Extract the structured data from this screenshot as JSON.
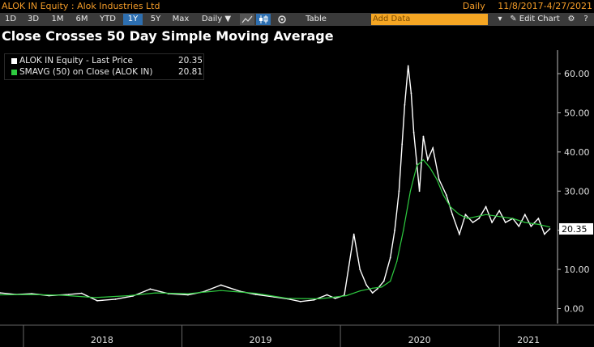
{
  "header": {
    "security": "ALOK IN Equity : Alok Industries Ltd",
    "frequency": "Daily",
    "date_range": "11/8/2017-4/27/2021"
  },
  "toolbar": {
    "periods": [
      "1D",
      "3D",
      "1M",
      "6M",
      "YTD",
      "1Y",
      "5Y",
      "Max"
    ],
    "selected_period": "1Y",
    "frequency_label": "Daily ▼",
    "line_icon": "line-chart-icon",
    "candle_icon": "candlestick-icon",
    "settings_icon": "gear-icon",
    "table_label": "Table",
    "add_data_placeholder": "Add Data",
    "edit_chart_label": "Edit Chart",
    "colors": {
      "accent": "#f29b28",
      "selected": "#2d6fb1",
      "add_data": "#f5a623"
    }
  },
  "chart_data": {
    "type": "line",
    "title": "Close Crosses 50 Day Simple Moving Average",
    "series": [
      {
        "name": "ALOK IN Equity - Last Price",
        "last_value": "20.35",
        "color": "#ffffff",
        "x": [
          "2017-11-08",
          "2017-12-15",
          "2018-01-20",
          "2018-03-01",
          "2018-04-15",
          "2018-05-15",
          "2018-06-20",
          "2018-08-01",
          "2018-09-10",
          "2018-10-20",
          "2018-12-01",
          "2019-01-15",
          "2019-02-20",
          "2019-04-01",
          "2019-05-15",
          "2019-06-20",
          "2019-08-01",
          "2019-09-01",
          "2019-10-01",
          "2019-11-01",
          "2019-12-01",
          "2019-12-20",
          "2020-01-10",
          "2020-02-01",
          "2020-02-15",
          "2020-03-01",
          "2020-03-15",
          "2020-03-26",
          "2020-04-10",
          "2020-04-25",
          "2020-05-05",
          "2020-05-15",
          "2020-05-22",
          "2020-05-28",
          "2020-06-05",
          "2020-06-12",
          "2020-06-18",
          "2020-06-25",
          "2020-07-01",
          "2020-07-10",
          "2020-07-20",
          "2020-08-01",
          "2020-08-15",
          "2020-09-01",
          "2020-09-15",
          "2020-10-01",
          "2020-10-15",
          "2020-11-01",
          "2020-11-15",
          "2020-12-01",
          "2020-12-15",
          "2021-01-01",
          "2021-01-15",
          "2021-02-01",
          "2021-02-15",
          "2021-03-01",
          "2021-03-15",
          "2021-04-01",
          "2021-04-15",
          "2021-04-27"
        ],
        "values": [
          4.0,
          3.6,
          3.8,
          3.3,
          3.6,
          3.9,
          2.0,
          2.4,
          3.2,
          5.0,
          3.8,
          3.5,
          4.3,
          6.0,
          4.4,
          3.6,
          3.0,
          2.5,
          1.8,
          2.2,
          3.5,
          2.6,
          3.4,
          19.0,
          10.0,
          6.0,
          4.0,
          5.0,
          7.0,
          13.0,
          20.0,
          30.0,
          42.0,
          52.0,
          62.0,
          55.0,
          45.0,
          37.0,
          30.0,
          44.0,
          38.0,
          41.0,
          33.0,
          29.0,
          24.0,
          19.0,
          24.0,
          22.0,
          23.0,
          26.0,
          22.0,
          25.0,
          22.0,
          23.0,
          21.0,
          24.0,
          21.0,
          23.0,
          19.0,
          20.35
        ]
      },
      {
        "name": "SMAVG (50)  on Close (ALOK IN)",
        "last_value": "20.81",
        "color": "#2ecc40",
        "x": [
          "2017-11-08",
          "2018-01-15",
          "2018-04-01",
          "2018-06-15",
          "2018-09-01",
          "2018-11-01",
          "2019-01-15",
          "2019-04-01",
          "2019-06-20",
          "2019-09-01",
          "2019-11-15",
          "2020-01-15",
          "2020-02-15",
          "2020-03-15",
          "2020-04-05",
          "2020-04-25",
          "2020-05-10",
          "2020-05-25",
          "2020-06-10",
          "2020-06-25",
          "2020-07-10",
          "2020-07-25",
          "2020-08-10",
          "2020-08-25",
          "2020-09-10",
          "2020-10-01",
          "2020-10-20",
          "2020-11-10",
          "2020-12-01",
          "2021-01-01",
          "2021-02-01",
          "2021-03-01",
          "2021-04-01",
          "2021-04-27"
        ],
        "values": [
          3.5,
          3.6,
          3.4,
          2.8,
          3.3,
          4.0,
          3.8,
          4.6,
          3.9,
          2.6,
          2.5,
          3.3,
          4.5,
          5.2,
          5.5,
          7.0,
          12.0,
          20.0,
          30.0,
          36.5,
          38.0,
          36.0,
          33.0,
          29.0,
          26.0,
          24.0,
          23.0,
          23.5,
          24.0,
          23.5,
          23.0,
          22.0,
          21.5,
          20.81
        ]
      }
    ],
    "y_ticks": [
      "60.00",
      "50.00",
      "40.00",
      "30.00",
      "20.00",
      "10.00",
      "0.00"
    ],
    "ylim": [
      -3,
      66
    ],
    "xlim": [
      "2017-11-08",
      "2021-05-15"
    ],
    "x_ticks": [
      "2018",
      "2019",
      "2020",
      "2021"
    ],
    "last_price_label": "20.35",
    "legend_position": "top-left",
    "grid": false,
    "background": "#000000"
  }
}
